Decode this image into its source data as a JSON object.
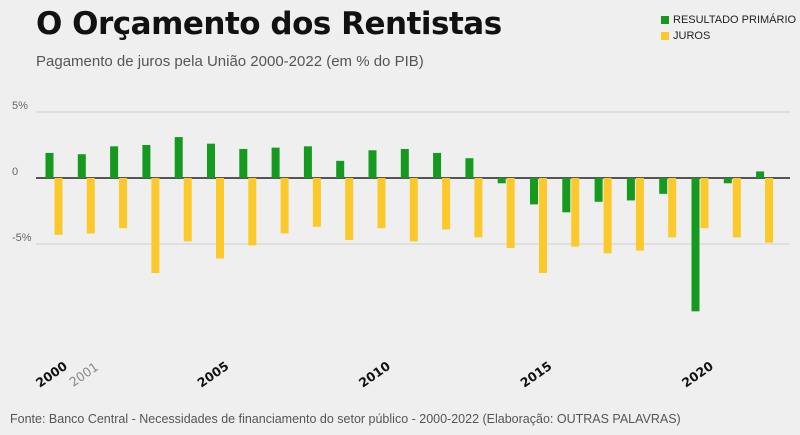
{
  "title": "O Orçamento dos Rentistas",
  "subtitle": "Pagamento de juros pela União 2000-2022 (em % do PIB)",
  "source": "Fonte: Banco Central - Necessidades de financiamento do setor público - 2000-2022 (Elaboração: OUTRAS PALAVRAS)",
  "colors": {
    "resultado": "#159a1f",
    "juros": "#fcc92b"
  },
  "chart_data": {
    "type": "bar",
    "categories": [
      "2000",
      "2001",
      "2002",
      "2003",
      "2004",
      "2005",
      "2006",
      "2007",
      "2008",
      "2009",
      "2010",
      "2011",
      "2012",
      "2013",
      "2014",
      "2015",
      "2016",
      "2017",
      "2018",
      "2019",
      "2020",
      "2021",
      "2022"
    ],
    "series": [
      {
        "name": "RESULTADO PRIMÁRIO",
        "values": [
          1.9,
          1.8,
          2.4,
          2.5,
          3.1,
          2.6,
          2.2,
          2.3,
          2.4,
          1.3,
          2.1,
          2.2,
          1.9,
          1.5,
          -0.4,
          -2.0,
          -2.6,
          -1.8,
          -1.7,
          -1.2,
          -10.1,
          -0.4,
          0.5
        ]
      },
      {
        "name": "JUROS",
        "values": [
          -4.3,
          -4.2,
          -3.8,
          -7.2,
          -4.8,
          -6.1,
          -5.1,
          -4.2,
          -3.7,
          -4.7,
          -3.8,
          -4.8,
          -3.9,
          -4.5,
          -5.3,
          -7.2,
          -5.2,
          -5.7,
          -5.5,
          -4.5,
          -3.8,
          -4.5,
          -4.9
        ]
      }
    ],
    "yticks": [
      {
        "value": 5,
        "label": "5%"
      },
      {
        "value": 0,
        "label": "0"
      },
      {
        "value": -5,
        "label": "-5%"
      }
    ],
    "xtick_labels": [
      {
        "category": "2000",
        "label": "2000",
        "bold": true
      },
      {
        "category": "2001",
        "label": "2001",
        "bold": false
      },
      {
        "category": "2005",
        "label": "2005",
        "bold": true
      },
      {
        "category": "2010",
        "label": "2010",
        "bold": true
      },
      {
        "category": "2015",
        "label": "2015",
        "bold": true
      },
      {
        "category": "2020",
        "label": "2020",
        "bold": true
      }
    ],
    "ylim": [
      -12,
      6
    ],
    "grid": true,
    "legend_position": "top-right"
  }
}
